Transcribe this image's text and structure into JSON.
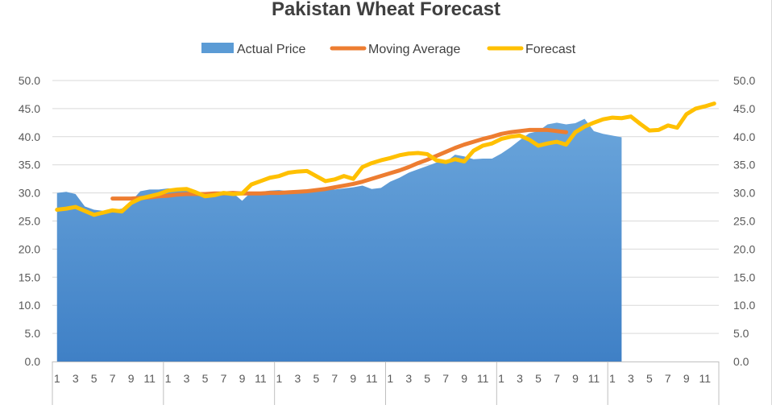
{
  "chart_data": {
    "type": "area",
    "title": "Pakistan Wheat Forecast",
    "legend": {
      "position": "top",
      "entries": [
        {
          "name": "Actual Price",
          "color": "#5B9BD5",
          "kind": "area"
        },
        {
          "name": "Moving Average",
          "color": "#ED7D31",
          "kind": "line"
        },
        {
          "name": "Forecast",
          "color": "#FFC000",
          "kind": "line"
        }
      ]
    },
    "y_axis": {
      "min": 0,
      "max": 50,
      "step": 5,
      "labels": [
        "0.0",
        "5.0",
        "10.0",
        "15.0",
        "20.0",
        "25.0",
        "30.0",
        "35.0",
        "40.0",
        "45.0",
        "50.0"
      ],
      "secondary_labels": true
    },
    "x_axis": {
      "month_labels": [
        "1",
        "3",
        "5",
        "7",
        "9",
        "11",
        "1",
        "3",
        "5",
        "7",
        "9",
        "11",
        "1",
        "3",
        "5",
        "7",
        "9",
        "11",
        "1",
        "3",
        "5",
        "7",
        "9",
        "11",
        "1",
        "3",
        "5",
        "7",
        "9",
        "11",
        "1",
        "3",
        "5",
        "7",
        "9",
        "11"
      ],
      "groups": 6,
      "months_per_group": 12
    },
    "grid": true,
    "series": [
      {
        "name": "Actual Price",
        "type": "area",
        "color": "#5B9BD5",
        "values": [
          30.0,
          30.2,
          29.8,
          27.6,
          27.0,
          26.8,
          26.9,
          27.2,
          28.5,
          30.3,
          30.6,
          30.6,
          30.8,
          30.6,
          30.7,
          29.9,
          29.9,
          30.1,
          30.1,
          30.0,
          28.6,
          30.2,
          30.2,
          30.4,
          30.5,
          30.3,
          30.4,
          30.6,
          30.8,
          30.9,
          30.6,
          30.8,
          31.0,
          31.3,
          30.7,
          30.9,
          32.0,
          32.7,
          33.6,
          34.2,
          34.8,
          35.4,
          35.5,
          36.8,
          36.5,
          36.0,
          36.1,
          36.1,
          37.0,
          38.1,
          39.4,
          40.6,
          41.0,
          42.2,
          42.5,
          42.2,
          42.4,
          43.2,
          41.0,
          40.5,
          40.2,
          39.9
        ]
      },
      {
        "name": "Moving Average",
        "type": "line",
        "color": "#ED7D31",
        "start_index": 6,
        "values": [
          29.0,
          29.0,
          29.0,
          29.1,
          29.2,
          29.4,
          29.5,
          29.7,
          29.8,
          29.8,
          29.8,
          29.9,
          29.9,
          30.0,
          29.9,
          29.9,
          29.9,
          30.0,
          30.0,
          30.1,
          30.2,
          30.3,
          30.5,
          30.7,
          31.0,
          31.3,
          31.6,
          32.0,
          32.5,
          33.0,
          33.5,
          34.0,
          34.6,
          35.3,
          35.9,
          36.6,
          37.3,
          38.0,
          38.6,
          39.1,
          39.6,
          40.0,
          40.5,
          40.8,
          41.0,
          41.2,
          41.2,
          41.2,
          41.0,
          40.8
        ]
      },
      {
        "name": "Forecast",
        "type": "line",
        "color": "#FFC000",
        "values": [
          27.0,
          27.2,
          27.5,
          26.8,
          26.1,
          26.5,
          26.9,
          26.7,
          28.2,
          29.0,
          29.4,
          29.8,
          30.4,
          30.6,
          30.7,
          30.1,
          29.4,
          29.6,
          30.0,
          29.8,
          29.9,
          31.5,
          32.1,
          32.7,
          33.0,
          33.6,
          33.8,
          33.9,
          33.0,
          32.1,
          32.4,
          33.0,
          32.5,
          34.6,
          35.3,
          35.8,
          36.2,
          36.7,
          37.0,
          37.1,
          36.9,
          35.8,
          35.5,
          36.0,
          35.6,
          37.5,
          38.4,
          38.8,
          39.6,
          40.0,
          40.2,
          39.5,
          38.4,
          38.8,
          39.1,
          38.6,
          40.8,
          41.8,
          42.5,
          43.1,
          43.4,
          43.3,
          43.6,
          42.3,
          41.1,
          41.2,
          42.0,
          41.6,
          44.0,
          45.0,
          45.4,
          45.9
        ]
      }
    ]
  }
}
